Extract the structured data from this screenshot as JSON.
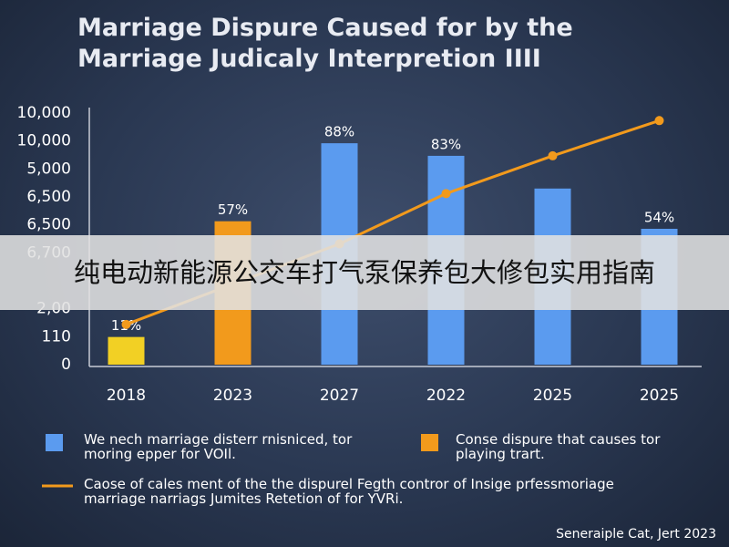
{
  "chart_data": {
    "type": "bar",
    "title": "Marriage Dispure Caused for by the Marriage Judicaly Interpretion IIII",
    "categories": [
      "2018",
      "2023",
      "2027",
      "2022",
      "2025",
      "2025"
    ],
    "ylim": [
      0,
      100
    ],
    "ytick_labels": [
      "10,000",
      "10,000",
      "5,000",
      "6,500",
      "6,500",
      "6,700",
      null,
      "2,00",
      "110",
      "0"
    ],
    "series": [
      {
        "name": "We nech marriage disterr rnisniced, tor moring epper for VOIl.",
        "type": "bar",
        "color": "#5b9bef",
        "colors": [
          "#f2d024",
          "#f29a1c",
          "#5b9bef",
          "#5b9bef",
          "#5b9bef",
          "#5b9bef"
        ],
        "values": [
          11,
          57,
          88,
          83,
          70,
          54
        ],
        "value_labels": [
          "11%",
          "57%",
          "88%",
          "83%",
          null,
          "54%"
        ]
      },
      {
        "name": "Caose of cales ment of the the dispurel Fegth contror of Insige prfessmoriage marriage narriags Jumites Retetion of for YVRi.",
        "type": "line",
        "color": "#f29a1c",
        "values": [
          16,
          32,
          48,
          68,
          83,
          97
        ]
      }
    ],
    "legend_extra": {
      "label": "Conse dispure that causes tor playing trart.",
      "color": "#f29a1c"
    },
    "source": "Seneraiple Cat, Jert 2023"
  },
  "banner": "纯电动新能源公交车打气泵保养包大修包实用指南"
}
